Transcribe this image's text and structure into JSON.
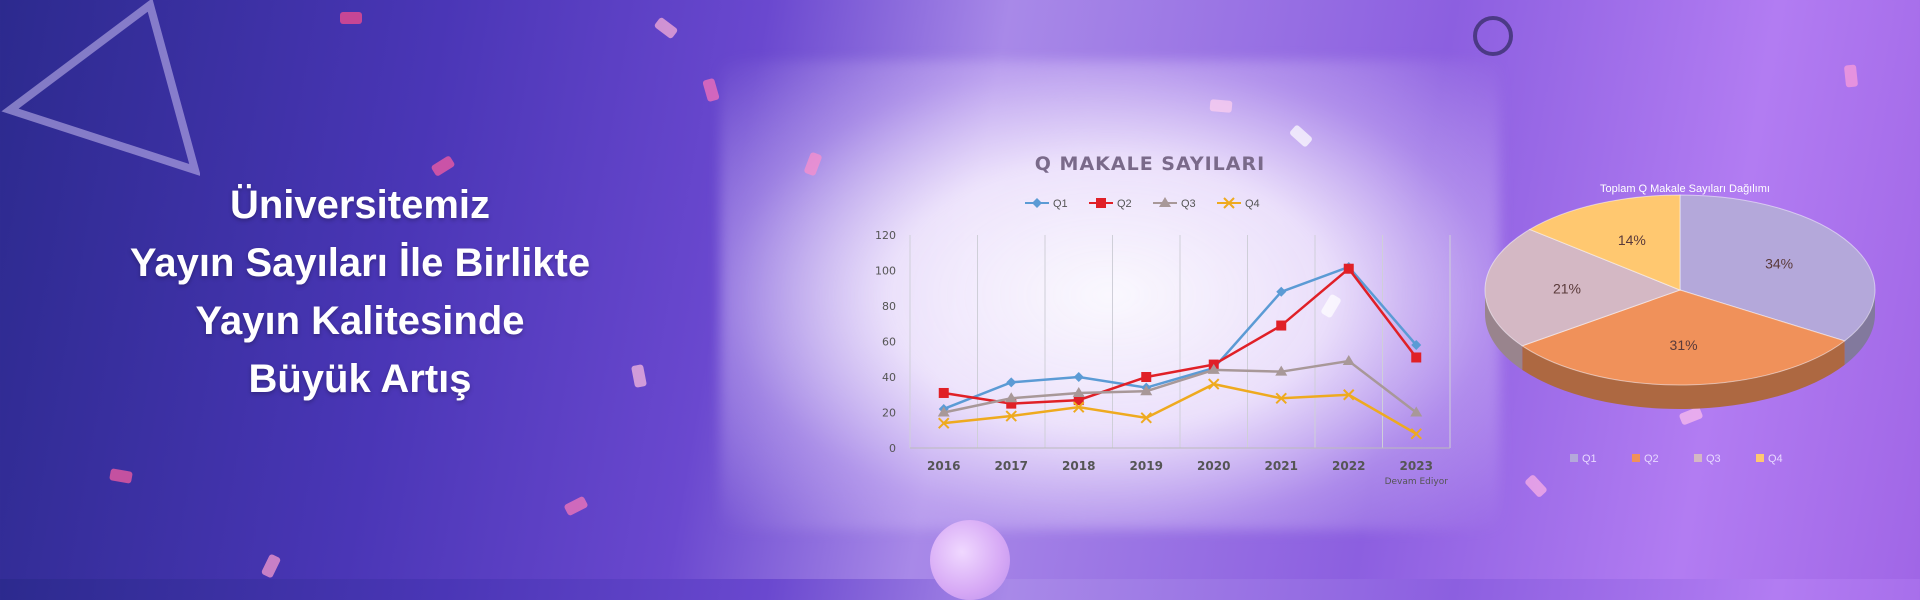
{
  "headline": {
    "line1": "Üniversitemiz",
    "line2": "Yayın Sayıları İle Birlikte",
    "line3": "Yayın Kalitesinde",
    "line4": "Büyük Artış"
  },
  "colors": {
    "Q1": "#5b9bd5",
    "Q2": "#e02027",
    "Q3": "#a89898",
    "Q4": "#eeaa1f"
  },
  "chart_data": [
    {
      "type": "line",
      "title": "Q MAKALE SAYILARI",
      "categories": [
        "2016",
        "2017",
        "2018",
        "2019",
        "2020",
        "2021",
        "2022",
        "2023"
      ],
      "category_note": "Devam Ediyor",
      "ylim": [
        0,
        120
      ],
      "yticks": [
        0,
        20,
        40,
        60,
        80,
        100,
        120
      ],
      "grid": "vertical",
      "legend": "top",
      "series": [
        {
          "name": "Q1",
          "marker": "diamond",
          "values": [
            22,
            37,
            40,
            34,
            45,
            88,
            102,
            58
          ]
        },
        {
          "name": "Q2",
          "marker": "square",
          "values": [
            31,
            25,
            27,
            40,
            47,
            69,
            101,
            51
          ]
        },
        {
          "name": "Q3",
          "marker": "triangle",
          "values": [
            20,
            28,
            31,
            32,
            44,
            43,
            49,
            20
          ]
        },
        {
          "name": "Q4",
          "marker": "x",
          "values": [
            14,
            18,
            23,
            17,
            36,
            28,
            30,
            8
          ]
        }
      ]
    },
    {
      "type": "pie",
      "title": "Toplam Q Makale Sayıları Dağılımı",
      "legend": "bottom",
      "slices": [
        {
          "name": "Q1",
          "value": 34,
          "label": "34%",
          "color": "#b4a8da"
        },
        {
          "name": "Q2",
          "value": 31,
          "label": "31%",
          "color": "#f0915a"
        },
        {
          "name": "Q3",
          "value": 21,
          "label": "21%",
          "color": "#d4b8c4"
        },
        {
          "name": "Q4",
          "value": 14,
          "label": "14%",
          "color": "#ffc870"
        }
      ]
    }
  ]
}
